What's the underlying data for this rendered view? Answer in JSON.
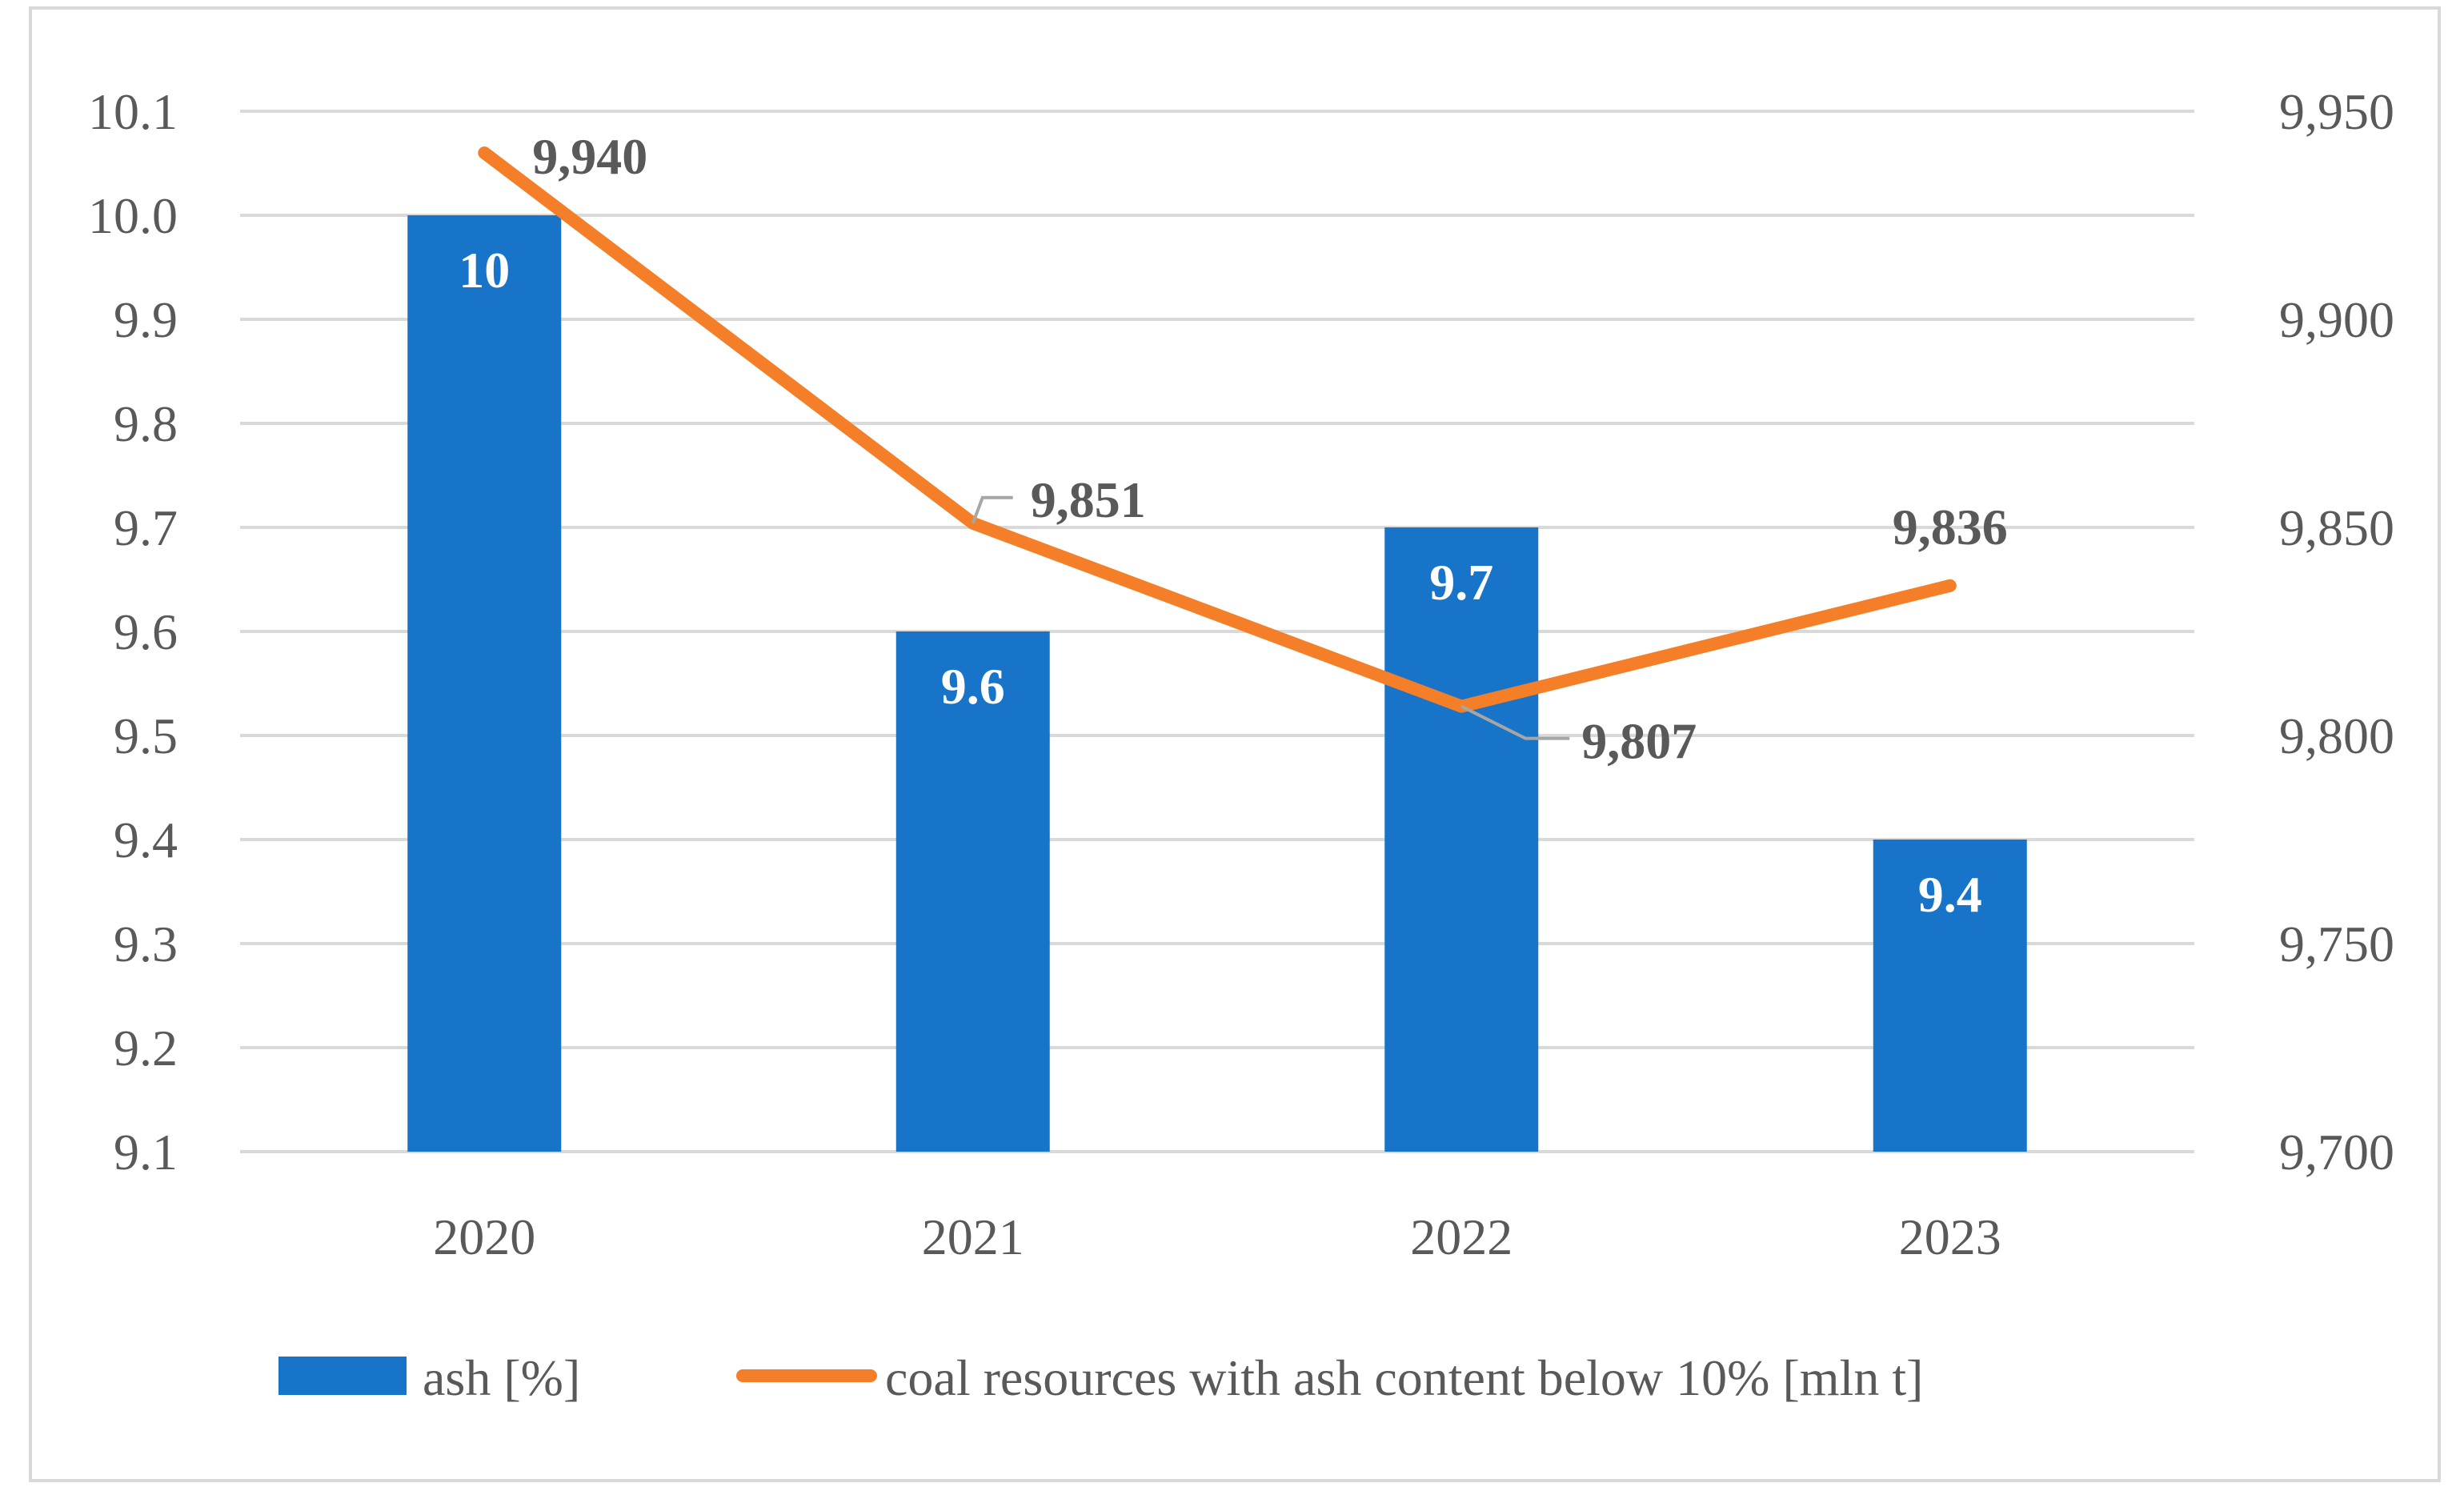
{
  "chart_data": {
    "type": "bar+line",
    "categories": [
      "2020",
      "2021",
      "2022",
      "2023"
    ],
    "series": [
      {
        "name": "ash [%]",
        "type": "bar",
        "axis": "left",
        "color": "#1874C8",
        "values": [
          10.0,
          9.6,
          9.7,
          9.4
        ],
        "labels": [
          "10",
          "9.6",
          "9.7",
          "9.4"
        ]
      },
      {
        "name": "coal resources with ash content below 10% [mln t]",
        "type": "line",
        "axis": "right",
        "color": "#F57F29",
        "values": [
          9940,
          9851,
          9807,
          9836
        ],
        "labels": [
          "9,940",
          "9,851",
          "9,807",
          "9,836"
        ]
      }
    ],
    "y_left": {
      "min": 9.1,
      "max": 10.1,
      "step": 0.1,
      "ticks": [
        "9.1",
        "9.2",
        "9.3",
        "9.4",
        "9.5",
        "9.6",
        "9.7",
        "9.8",
        "9.9",
        "10.0",
        "10.1"
      ]
    },
    "y_right": {
      "min": 9700,
      "max": 9950,
      "step": 50,
      "ticks": [
        "9,700",
        "9,750",
        "9,800",
        "9,850",
        "9,900",
        "9,950"
      ]
    },
    "grid": true,
    "legend_position": "bottom",
    "title": "",
    "xlabel": "",
    "ylabel": ""
  },
  "colors": {
    "grid": "#D9D9D9",
    "axis_text": "#595959",
    "bar_label": "#FFFFFF",
    "line_label": "#595959",
    "leader": "#A6A6A6",
    "border": "#D9D9D9"
  }
}
